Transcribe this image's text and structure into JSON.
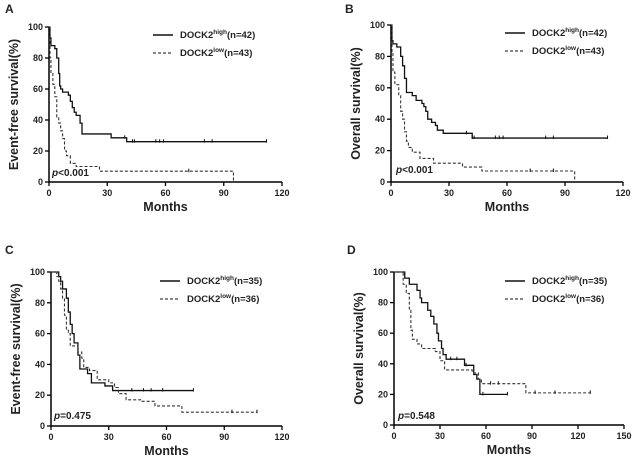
{
  "chart_data": [
    {
      "type": "line",
      "panel_label": "A",
      "xlabel": "Months",
      "ylabel": "Event-free survival(%)",
      "xlim": [
        0,
        120
      ],
      "ylim": [
        0,
        100
      ],
      "xticks": [
        "0",
        "30",
        "60",
        "90",
        "120"
      ],
      "yticks": [
        "0",
        "20",
        "40",
        "60",
        "80",
        "100"
      ],
      "p_value": {
        "italic": "p",
        "text": "<0.001"
      },
      "legend_position": "top-right",
      "series": [
        {
          "name": "DOCK2",
          "sup": "high",
          "n_label": "(n=42)",
          "style": "solid",
          "steps": [
            [
              0,
              100
            ],
            [
              0.5,
              93
            ],
            [
              1,
              88
            ],
            [
              3,
              86
            ],
            [
              4,
              80
            ],
            [
              5,
              70
            ],
            [
              5.5,
              62
            ],
            [
              6,
              60
            ],
            [
              7,
              58
            ],
            [
              10,
              56
            ],
            [
              11,
              52
            ],
            [
              12,
              48
            ],
            [
              13,
              45
            ],
            [
              14,
              43
            ],
            [
              16,
              38
            ],
            [
              17,
              31
            ],
            [
              32,
              28.5
            ],
            [
              40,
              26
            ]
          ],
          "end": 112,
          "censored": [
            39,
            43,
            44,
            55,
            57,
            59,
            80,
            84,
            112
          ]
        },
        {
          "name": "DOCK2",
          "sup": "low",
          "n_label": "(n=43)",
          "style": "dashed",
          "steps": [
            [
              0,
              100
            ],
            [
              0.5,
              80
            ],
            [
              1,
              70
            ],
            [
              2,
              63
            ],
            [
              3,
              55
            ],
            [
              4,
              42
            ],
            [
              5,
              38
            ],
            [
              6,
              33
            ],
            [
              7,
              28
            ],
            [
              8,
              20
            ],
            [
              9,
              17
            ],
            [
              11,
              12
            ],
            [
              14,
              10
            ],
            [
              26,
              7
            ],
            [
              95,
              0
            ]
          ],
          "end": 95,
          "censored": [
            72
          ]
        }
      ]
    },
    {
      "type": "line",
      "panel_label": "B",
      "xlabel": "Months",
      "ylabel": "Overall survival(%)",
      "xlim": [
        0,
        120
      ],
      "ylim": [
        0,
        100
      ],
      "xticks": [
        "0",
        "30",
        "60",
        "90",
        "120"
      ],
      "yticks": [
        "0",
        "20",
        "40",
        "60",
        "80",
        "100"
      ],
      "p_value": {
        "italic": "p",
        "text": "<0.001"
      },
      "legend_position": "top-right",
      "series": [
        {
          "name": "DOCK2",
          "sup": "high",
          "n_label": "(n=42)",
          "style": "solid",
          "steps": [
            [
              0,
              100
            ],
            [
              0.5,
              90
            ],
            [
              1,
              88
            ],
            [
              3,
              86
            ],
            [
              5,
              80
            ],
            [
              6,
              74
            ],
            [
              7,
              66
            ],
            [
              8,
              57
            ],
            [
              11,
              55
            ],
            [
              13,
              52
            ],
            [
              16,
              50
            ],
            [
              17,
              48
            ],
            [
              18,
              45
            ],
            [
              19,
              40
            ],
            [
              21,
              38
            ],
            [
              23,
              36
            ],
            [
              24,
              33
            ],
            [
              27,
              31
            ],
            [
              42,
              28
            ]
          ],
          "end": 112,
          "censored": [
            39,
            42,
            43,
            54,
            56,
            58,
            80,
            84,
            112
          ]
        },
        {
          "name": "DOCK2",
          "sup": "low",
          "n_label": "(n=43)",
          "style": "dashed",
          "steps": [
            [
              0,
              100
            ],
            [
              0.5,
              82
            ],
            [
              1,
              70
            ],
            [
              2,
              62
            ],
            [
              4,
              55
            ],
            [
              5,
              45
            ],
            [
              6,
              40
            ],
            [
              7,
              32
            ],
            [
              8,
              26
            ],
            [
              9,
              22
            ],
            [
              11,
              19
            ],
            [
              15,
              15
            ],
            [
              22,
              12
            ],
            [
              37,
              9.5
            ],
            [
              47,
              7
            ],
            [
              95,
              0
            ]
          ],
          "end": 95,
          "censored": [
            72,
            84
          ]
        }
      ]
    },
    {
      "type": "line",
      "panel_label": "C",
      "xlabel": "Months",
      "ylabel": "Event-free survival(%)",
      "xlim": [
        0,
        120
      ],
      "ylim": [
        0,
        100
      ],
      "xticks": [
        "0",
        "30",
        "60",
        "90",
        "120"
      ],
      "yticks": [
        "0",
        "20",
        "40",
        "60",
        "80",
        "100"
      ],
      "p_value": {
        "italic": "p",
        "text": "=0.475"
      },
      "legend_position": "top-right",
      "series": [
        {
          "name": "DOCK2",
          "sup": "high",
          "n_label": "(n=35)",
          "style": "solid",
          "steps": [
            [
              0,
              100
            ],
            [
              4,
              97
            ],
            [
              5,
              94
            ],
            [
              6,
              89
            ],
            [
              8,
              83
            ],
            [
              9,
              74
            ],
            [
              10,
              66
            ],
            [
              11,
              60
            ],
            [
              12,
              54
            ],
            [
              14,
              46
            ],
            [
              15,
              37
            ],
            [
              18,
              37
            ],
            [
              19,
              34
            ],
            [
              21,
              28
            ],
            [
              28,
              26
            ],
            [
              32,
              23
            ]
          ],
          "end": 74,
          "censored": [
            42,
            48,
            52,
            58,
            74
          ]
        },
        {
          "name": "DOCK2",
          "sup": "low",
          "n_label": "(n=36)",
          "style": "dashed",
          "steps": [
            [
              0,
              100
            ],
            [
              3,
              97
            ],
            [
              4,
              94
            ],
            [
              5,
              89
            ],
            [
              6,
              83
            ],
            [
              7,
              72
            ],
            [
              8,
              63
            ],
            [
              9,
              60
            ],
            [
              10,
              52
            ],
            [
              14,
              48
            ],
            [
              16,
              44
            ],
            [
              17,
              38
            ],
            [
              20,
              36
            ],
            [
              24,
              30
            ],
            [
              30,
              28
            ],
            [
              33,
              25
            ],
            [
              35,
              21
            ],
            [
              39,
              17
            ],
            [
              47,
              16
            ],
            [
              54,
              13
            ],
            [
              68,
              9
            ]
          ],
          "end": 107,
          "censored": [
            94,
            107
          ]
        }
      ]
    },
    {
      "type": "line",
      "panel_label": "D",
      "xlabel": "Months",
      "ylabel": "Overall survival(%)",
      "xlim": [
        0,
        150
      ],
      "ylim": [
        0,
        100
      ],
      "xticks": [
        "0",
        "30",
        "60",
        "90",
        "120",
        "150"
      ],
      "yticks": [
        "0",
        "20",
        "40",
        "60",
        "80",
        "100"
      ],
      "p_value": {
        "italic": "p",
        "text": "=0.548"
      },
      "legend_position": "top-right",
      "series": [
        {
          "name": "DOCK2",
          "sup": "high",
          "n_label": "(n=35)",
          "style": "solid",
          "steps": [
            [
              0,
              100
            ],
            [
              7,
              96
            ],
            [
              10,
              92
            ],
            [
              15,
              88
            ],
            [
              17,
              83
            ],
            [
              18,
              80
            ],
            [
              22,
              75
            ],
            [
              24,
              71
            ],
            [
              26,
              66
            ],
            [
              28,
              60
            ],
            [
              29,
              55
            ],
            [
              31,
              50
            ],
            [
              32,
              46
            ],
            [
              34,
              43
            ],
            [
              46,
              39
            ],
            [
              52,
              33
            ],
            [
              54,
              30
            ],
            [
              56,
              20
            ]
          ],
          "end": 74,
          "censored": [
            37,
            41,
            47,
            58,
            74
          ]
        },
        {
          "name": "DOCK2",
          "sup": "low",
          "n_label": "(n=36)",
          "style": "dashed",
          "steps": [
            [
              0,
              100
            ],
            [
              6,
              92
            ],
            [
              8,
              86
            ],
            [
              10,
              75
            ],
            [
              11,
              62
            ],
            [
              12,
              56
            ],
            [
              15,
              53
            ],
            [
              18,
              50
            ],
            [
              27,
              48
            ],
            [
              30,
              42
            ],
            [
              33,
              36
            ],
            [
              51,
              34
            ],
            [
              55,
              30
            ],
            [
              57,
              27
            ],
            [
              86,
              21
            ]
          ],
          "end": 128,
          "censored": [
            63,
            68,
            92,
            105,
            128
          ]
        }
      ]
    }
  ]
}
